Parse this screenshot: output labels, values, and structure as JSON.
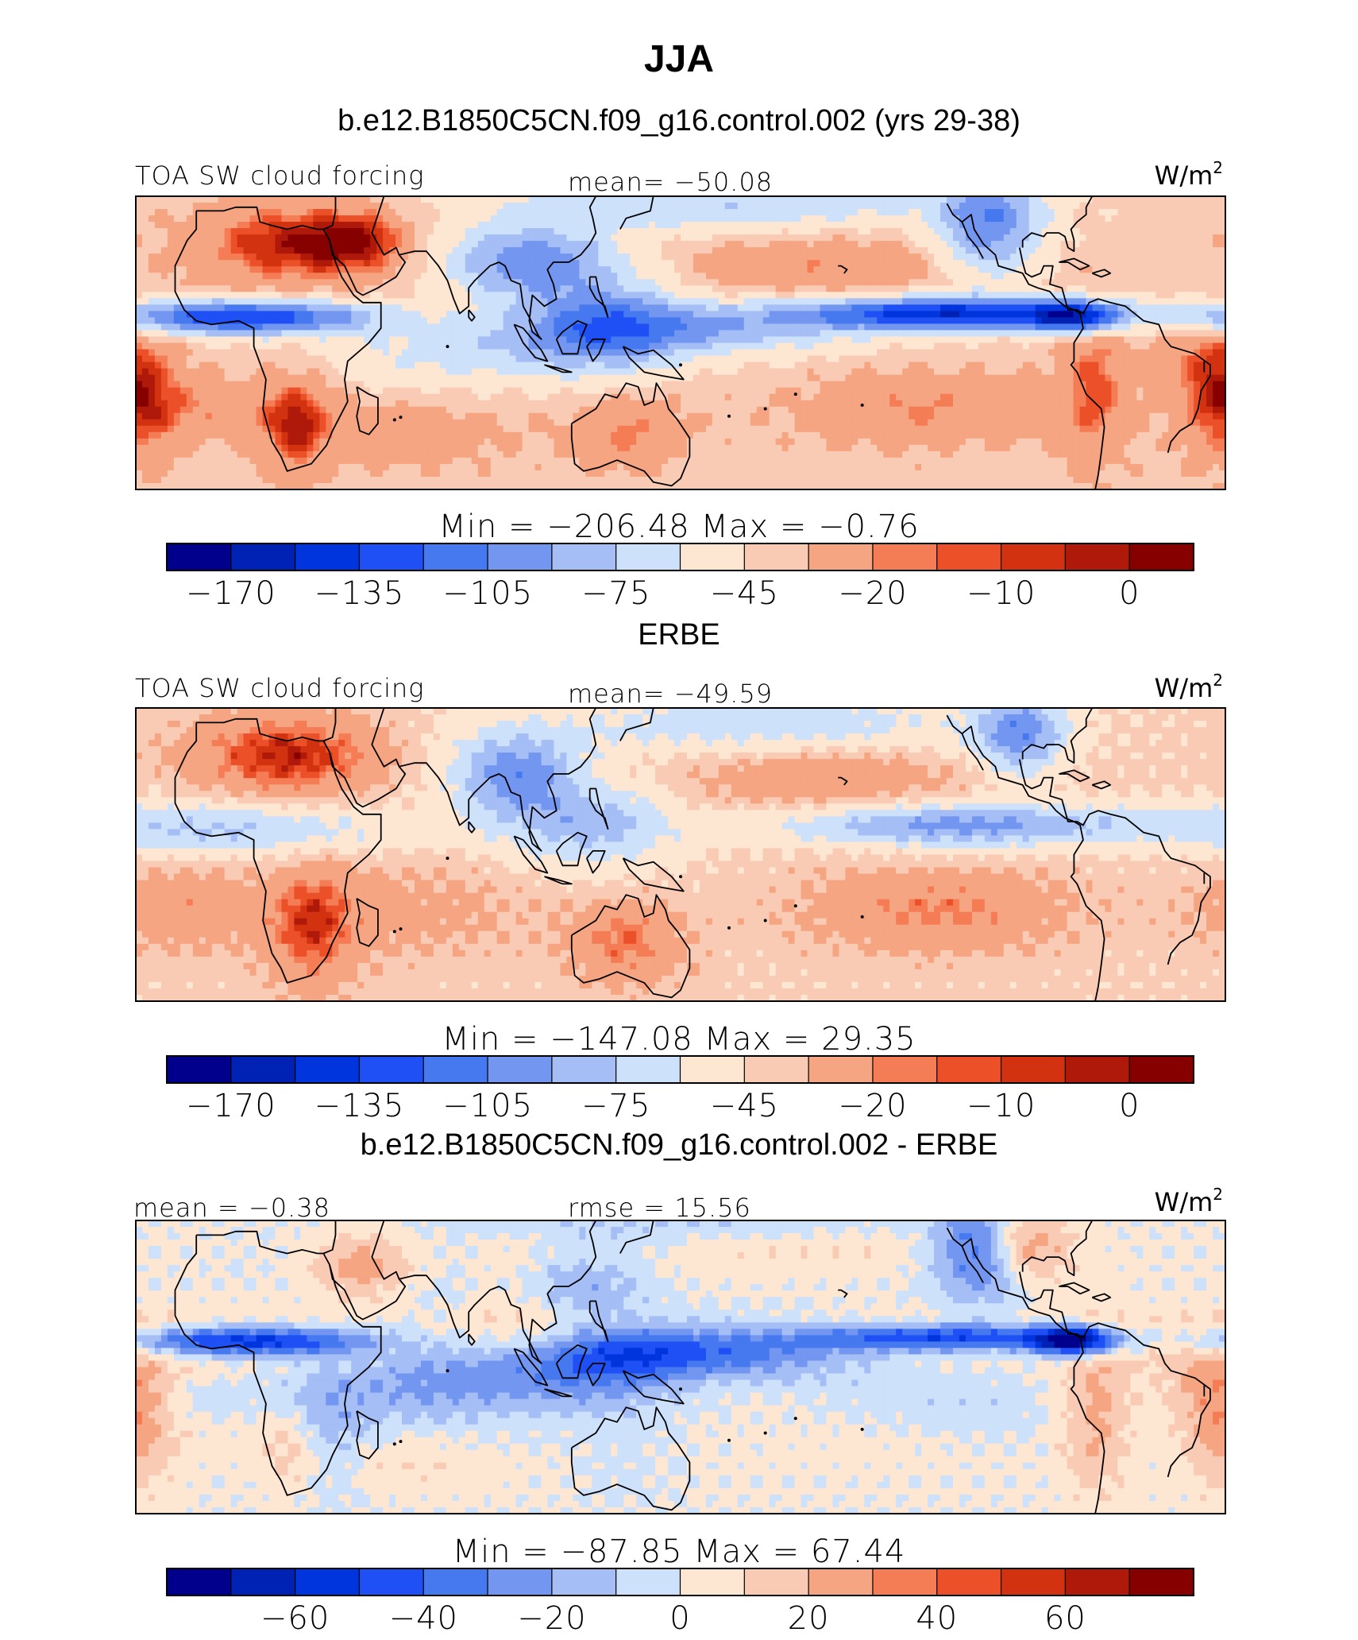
{
  "figure": {
    "title": "JJA",
    "panel_titles": [
      "b.e12.B1850C5CN.f09_g16.control.002 (yrs 29-38)",
      "ERBE",
      "b.e12.B1850C5CN.f09_g16.control.002 - ERBE"
    ]
  },
  "panels": [
    {
      "left": "TOA SW cloud forcing",
      "center": "mean= −50.08",
      "units_base": "W/m",
      "units_exp": "2",
      "minmax": "Min  =  −206.48  Max  =   −0.76"
    },
    {
      "left": "TOA SW cloud forcing",
      "center": "mean= −49.59",
      "units_base": "W/m",
      "units_exp": "2",
      "minmax": "Min  =  −147.08  Max  =   29.35"
    },
    {
      "left": "mean =  −0.38",
      "center": "rmse =  15.56",
      "units_base": "W/m",
      "units_exp": "2",
      "minmax": "Min  =  −87.85  Max  =   67.44"
    }
  ],
  "colorbars": {
    "field": {
      "tick_labels": [
        "−170",
        "−135",
        "−105",
        "−75",
        "−45",
        "−20",
        "−10",
        "0"
      ],
      "tick_boundaries": [
        1,
        3,
        5,
        7,
        9,
        11,
        13,
        15
      ]
    },
    "diff": {
      "tick_labels": [
        "−60",
        "−40",
        "−20",
        "0",
        "20",
        "40",
        "60"
      ],
      "tick_boundaries": [
        2,
        4,
        6,
        8,
        10,
        12,
        14
      ]
    },
    "colors": [
      "#00008c",
      "#0022b4",
      "#0034dc",
      "#1e50f5",
      "#4678f0",
      "#7396f0",
      "#a5bef5",
      "#cde1fa",
      "#fde6d2",
      "#facbb4",
      "#f5a582",
      "#f57d55",
      "#eb5028",
      "#d2320f",
      "#af190a",
      "#870000"
    ]
  },
  "chart_data": [
    {
      "type": "heatmap",
      "title": "b.e12.B1850C5CN.f09_g16.control.002 (yrs 29-38)",
      "variable": "TOA SW cloud forcing",
      "units": "W/m2",
      "mean": -50.08,
      "min": -206.48,
      "max": -0.76,
      "colorbar_ticks": [
        -170,
        -135,
        -105,
        -75,
        -45,
        -20,
        -10,
        0
      ]
    },
    {
      "type": "heatmap",
      "title": "ERBE",
      "variable": "TOA SW cloud forcing",
      "units": "W/m2",
      "mean": -49.59,
      "min": -147.08,
      "max": 29.35,
      "colorbar_ticks": [
        -170,
        -135,
        -105,
        -75,
        -45,
        -20,
        -10,
        0
      ]
    },
    {
      "type": "heatmap",
      "title": "b.e12.B1850C5CN.f09_g16.control.002 - ERBE",
      "units": "W/m2",
      "mean": -0.38,
      "rmse": 15.56,
      "min": -87.85,
      "max": 67.44,
      "colorbar_ticks": [
        -60,
        -40,
        -20,
        0,
        20,
        40,
        60
      ]
    }
  ]
}
